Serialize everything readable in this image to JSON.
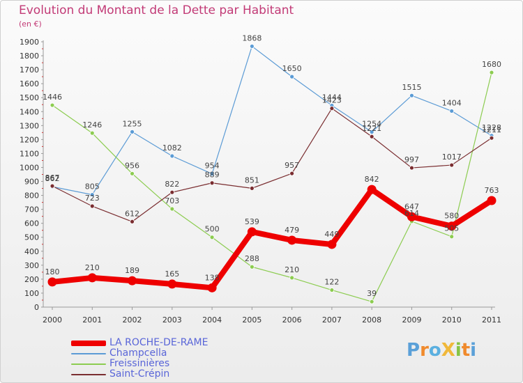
{
  "title": "Evolution du Montant de la Dette par Habitant",
  "subtitle": "(en €)",
  "colors": {
    "title": "#c23a76",
    "legend_text": "#5965d8"
  },
  "logo": {
    "text": "ProXiti",
    "colors": [
      "#5aa0d8",
      "#f08a2c",
      "#5bb0e0",
      "#f0b83a",
      "#86c445",
      "#f08a2c",
      "#5aa0d8"
    ]
  },
  "chart_data": {
    "type": "line",
    "title": "Evolution du Montant de la Dette par Habitant",
    "ylabel": "(en €)",
    "xlabel": "",
    "x": [
      "2000",
      "2001",
      "2002",
      "2003",
      "2004",
      "2005",
      "2006",
      "2007",
      "2008",
      "2009",
      "2010",
      "2011"
    ],
    "ylim": [
      0,
      1900
    ],
    "yticks": [
      0,
      100,
      200,
      300,
      400,
      500,
      600,
      700,
      800,
      900,
      1000,
      1100,
      1200,
      1300,
      1400,
      1500,
      1600,
      1700,
      1800,
      1900
    ],
    "grid": false,
    "legend": "bottom-left",
    "series": [
      {
        "name": "LA ROCHE-DE-RAME",
        "color": "#ee0000",
        "values": [
          180,
          210,
          189,
          165,
          138,
          539,
          479,
          449,
          842,
          647,
          580,
          763
        ]
      },
      {
        "name": "Champcella",
        "color": "#5b9bd5",
        "values": [
          862,
          805,
          1255,
          1082,
          954,
          1868,
          1650,
          1444,
          1254,
          1515,
          1404,
          1228
        ]
      },
      {
        "name": "Freissinières",
        "color": "#8ccc50",
        "values": [
          1446,
          1246,
          956,
          703,
          500,
          288,
          210,
          122,
          39,
          614,
          505,
          1680
        ]
      },
      {
        "name": "Saint-Crépin",
        "color": "#7a2d30",
        "values": [
          867,
          723,
          612,
          822,
          889,
          851,
          957,
          1423,
          1221,
          997,
          1017,
          1211
        ]
      }
    ]
  }
}
